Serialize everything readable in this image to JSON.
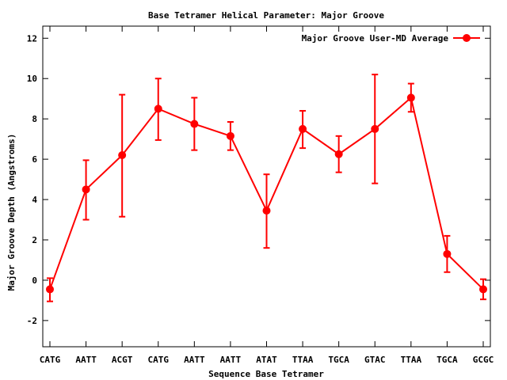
{
  "chart_data": {
    "type": "line",
    "title": "Base Tetramer Helical Parameter: Major Groove",
    "xlabel": "Sequence Base Tetramer",
    "ylabel": "Major Groove Depth (Angstroms)",
    "ylim": [
      -3.3,
      12.6
    ],
    "yticks": [
      -2,
      0,
      2,
      4,
      6,
      8,
      10,
      12
    ],
    "categories": [
      "CATG",
      "AATT",
      "ACGT",
      "CATG",
      "AATT",
      "AATT",
      "ATAT",
      "TTAA",
      "TGCA",
      "GTAC",
      "TTAA",
      "TGCA",
      "GCGC"
    ],
    "grid": false,
    "legend_position": "top-right",
    "series": [
      {
        "name": "Major Groove User-MD Average",
        "color": "#ff0000",
        "values": [
          -0.45,
          4.5,
          6.2,
          8.5,
          7.75,
          7.15,
          3.45,
          7.5,
          6.25,
          7.5,
          9.05,
          1.3,
          -0.45
        ],
        "err_low": [
          -1.05,
          3.0,
          3.15,
          6.95,
          6.45,
          6.45,
          1.6,
          6.55,
          5.35,
          4.8,
          8.35,
          0.4,
          -0.95
        ],
        "err_high": [
          0.1,
          5.95,
          9.2,
          10.0,
          9.05,
          7.85,
          5.25,
          8.4,
          7.15,
          10.2,
          9.75,
          2.2,
          0.05
        ]
      }
    ]
  }
}
